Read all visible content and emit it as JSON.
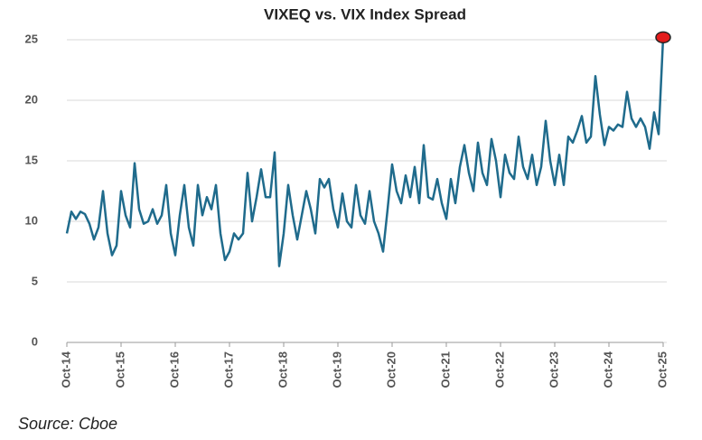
{
  "chart_data": {
    "type": "line",
    "title": "VIXEQ vs. VIX Index Spread",
    "source": "Source: Cboe",
    "categories": [
      "Oct-14",
      null,
      null,
      null,
      null,
      null,
      null,
      null,
      null,
      null,
      null,
      null,
      "Oct-15",
      null,
      null,
      null,
      null,
      null,
      null,
      null,
      null,
      null,
      null,
      null,
      "Oct-16",
      null,
      null,
      null,
      null,
      null,
      null,
      null,
      null,
      null,
      null,
      null,
      "Oct-17",
      null,
      null,
      null,
      null,
      null,
      null,
      null,
      null,
      null,
      null,
      null,
      "Oct-18",
      null,
      null,
      null,
      null,
      null,
      null,
      null,
      null,
      null,
      null,
      null,
      "Oct-19",
      null,
      null,
      null,
      null,
      null,
      null,
      null,
      null,
      null,
      null,
      null,
      "Oct-20",
      null,
      null,
      null,
      null,
      null,
      null,
      null,
      null,
      null,
      null,
      null,
      "Oct-21",
      null,
      null,
      null,
      null,
      null,
      null,
      null,
      null,
      null,
      null,
      null,
      "Oct-22",
      null,
      null,
      null,
      null,
      null,
      null,
      null,
      null,
      null,
      null,
      null,
      "Oct-23",
      null,
      null,
      null,
      null,
      null,
      null,
      null,
      null,
      null,
      null,
      null,
      "Oct-24",
      null,
      null,
      null,
      null,
      null,
      null,
      null,
      null,
      null,
      null,
      null,
      "Oct-25"
    ],
    "series": [
      {
        "color": "#1f6b8c",
        "values": [
          9,
          10.8,
          10.2,
          10.8,
          10.6,
          9.8,
          8.5,
          9.5,
          12.5,
          9,
          7.2,
          8,
          12.5,
          10.5,
          9.5,
          14.8,
          11,
          9.8,
          10,
          11,
          9.8,
          10.5,
          13,
          9,
          7.2,
          10.5,
          13,
          9.5,
          8,
          13,
          10.5,
          12,
          11,
          13,
          9,
          6.8,
          7.5,
          9,
          8.5,
          9,
          14,
          10,
          12,
          14.3,
          12,
          12,
          15.7,
          6.3,
          9,
          13,
          10.5,
          8.5,
          10.5,
          12.5,
          11,
          9,
          13.5,
          12.8,
          13.5,
          11,
          9.5,
          12.3,
          10,
          9.5,
          13,
          10.5,
          9.8,
          12.5,
          10,
          9,
          7.5,
          11,
          14.7,
          12.5,
          11.5,
          13.8,
          12,
          14.5,
          11.5,
          16.3,
          12,
          11.8,
          13.5,
          11.5,
          10.2,
          13.5,
          11.5,
          14.5,
          16.3,
          14,
          12.5,
          16.5,
          14,
          13,
          16.8,
          15,
          12,
          15.5,
          14,
          13.5,
          17,
          14.5,
          13.5,
          15.5,
          13,
          14.5,
          18.3,
          15,
          13,
          15.5,
          13,
          17,
          16.5,
          17.5,
          18.7,
          16.5,
          17,
          22,
          18.8,
          16.3,
          17.8,
          17.5,
          18,
          17.8,
          20.7,
          18.5,
          17.8,
          18.5,
          17.8,
          16,
          19,
          17.2,
          25.2
        ]
      }
    ],
    "last_point_marker_color": "#e31b1b",
    "ylim": [
      0,
      25
    ],
    "yticks": [
      0,
      5,
      10,
      15,
      20,
      25
    ],
    "grid": true
  }
}
